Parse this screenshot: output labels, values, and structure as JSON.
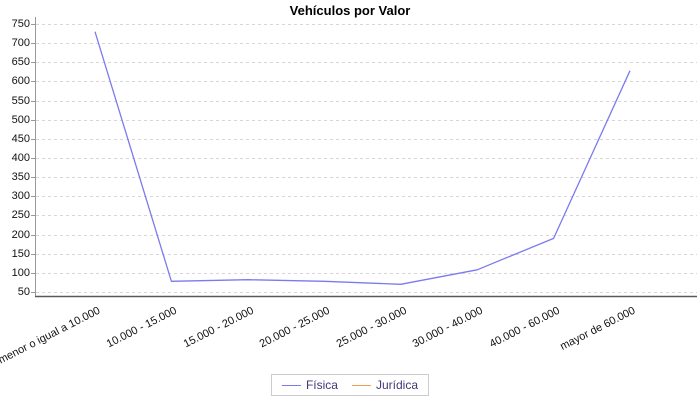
{
  "title": "Vehículos por Valor",
  "chart_data": {
    "type": "line",
    "title": "Vehículos por Valor",
    "categories": [
      "menor o igual a 10.000",
      "10.000 - 15.000",
      "15.000 - 20.000",
      "20.000 - 25.000",
      "25.000 - 30.000",
      "30.000 - 40.000",
      "40.000 - 60.000",
      "mayor de 60.000"
    ],
    "series": [
      {
        "name": "Física",
        "color": "#7b7bee",
        "values": [
          730,
          78,
          82,
          78,
          70,
          108,
          190,
          628
        ]
      },
      {
        "name": "Jurídica",
        "color": "#ee9d55",
        "values": []
      }
    ],
    "xlabel": "",
    "ylabel": "",
    "ylim": [
      50,
      750
    ],
    "ytick_step": 50,
    "grid": "horizontal dashed gridlines at every y tick",
    "legend_position": "bottom-center"
  },
  "colors": {
    "background": "#ffffff",
    "gridline": "#d6d6d6",
    "y_axis_line": "#999999",
    "x_axis_line": "#5a5a5a",
    "tick_label": "#111111",
    "legend_border": "#cccccc",
    "legend_text": "#3f3878",
    "series_fisica": "#7b7bee",
    "series_juridica": "#ee9d55"
  }
}
